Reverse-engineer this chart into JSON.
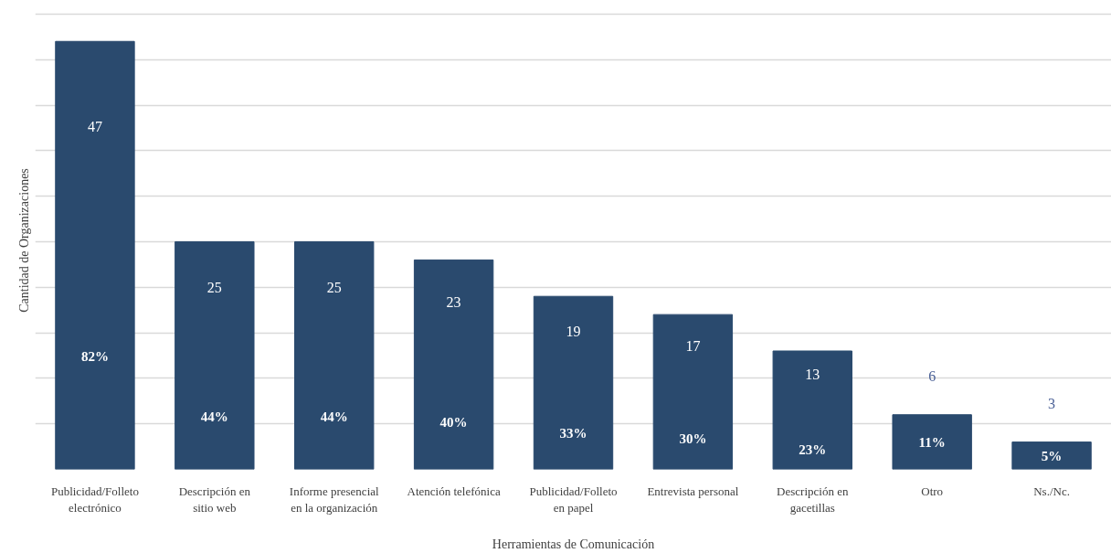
{
  "chart_data": {
    "type": "bar",
    "xlabel": "Herramientas de Comunicación",
    "ylabel": "Cantidad de Organizaciones",
    "categories": [
      "Publicidad/Folleto electrónico",
      "Descripción en sitio web",
      "Informe presencial en la organización",
      "Atención telefónica",
      "Publicidad/Folleto en papel",
      "Entrevista personal",
      "Descripción en gacetillas",
      "Otro",
      "Ns./Nc."
    ],
    "values": [
      47,
      25,
      25,
      23,
      19,
      17,
      13,
      6,
      3
    ],
    "color": "#2a4a6e",
    "data_labels": true,
    "grid": "y",
    "tick_labels": "x",
    "annotations": [
      "82%",
      "44%",
      "44%",
      "40%",
      "33%",
      "30%",
      "23%",
      "11%",
      "5%"
    ]
  }
}
